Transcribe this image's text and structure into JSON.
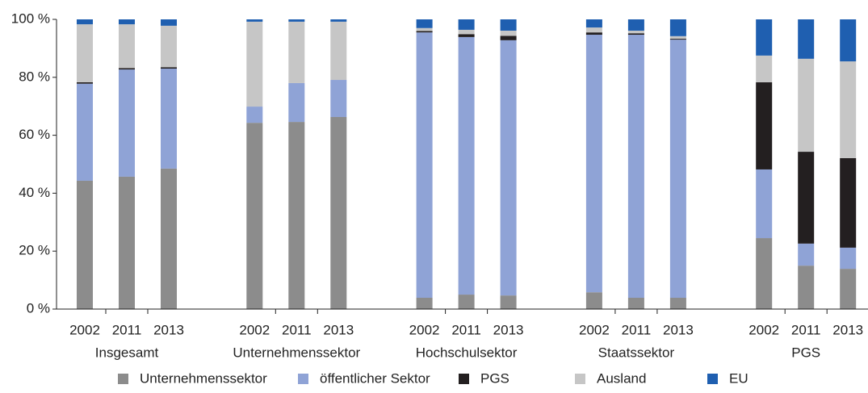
{
  "chart_data": {
    "type": "stacked_bar",
    "groups": [
      "Insgesamt",
      "Unternehmenssektor",
      "Hochschulsektor",
      "Staatssektor",
      "PGS"
    ],
    "categories": [
      "2002",
      "2011",
      "2013",
      "2002",
      "2011",
      "2013",
      "2002",
      "2011",
      "2013",
      "2002",
      "2011",
      "2013",
      "2002",
      "2011",
      "2013"
    ],
    "series": [
      {
        "name": "Unternehmenssektor",
        "color": "#8c8c8c",
        "values": [
          44.3,
          45.7,
          48.5,
          64.3,
          64.6,
          66.3,
          3.9,
          5.0,
          4.7,
          5.8,
          3.9,
          3.9,
          24.5,
          15.0,
          13.9
        ]
      },
      {
        "name": "öffentlicher Sektor",
        "color": "#8fa3d6",
        "values": [
          33.5,
          37.0,
          34.5,
          5.6,
          13.4,
          12.8,
          91.6,
          88.9,
          88.1,
          88.9,
          90.8,
          89.1,
          23.7,
          7.6,
          7.3
        ]
      },
      {
        "name": "PGS",
        "color": "#231f20",
        "values": [
          0.5,
          0.5,
          0.5,
          0,
          0,
          0,
          0.5,
          1.0,
          1.5,
          0.8,
          0.5,
          0.3,
          30.1,
          31.7,
          30.9
        ]
      },
      {
        "name": "Ausland",
        "color": "#c6c6c6",
        "values": [
          20.0,
          15.1,
          14.3,
          29.3,
          21.2,
          20.1,
          1.0,
          1.5,
          1.8,
          1.7,
          0.9,
          0.9,
          9.2,
          32.1,
          33.4
        ]
      },
      {
        "name": "EU",
        "color": "#1f5fb0",
        "values": [
          1.7,
          1.7,
          2.2,
          0.8,
          0.8,
          0.8,
          3.0,
          3.6,
          3.9,
          2.8,
          3.9,
          5.8,
          12.5,
          13.6,
          14.5
        ]
      }
    ],
    "ylim": [
      0,
      100
    ],
    "yticks": [
      {
        "value": 0,
        "label": "0 %"
      },
      {
        "value": 20,
        "label": "20 %"
      },
      {
        "value": 40,
        "label": "40 %"
      },
      {
        "value": 60,
        "label": "60 %"
      },
      {
        "value": 80,
        "label": "80 %"
      },
      {
        "value": 100,
        "label": "100 %"
      }
    ],
    "legend": "bottom"
  }
}
